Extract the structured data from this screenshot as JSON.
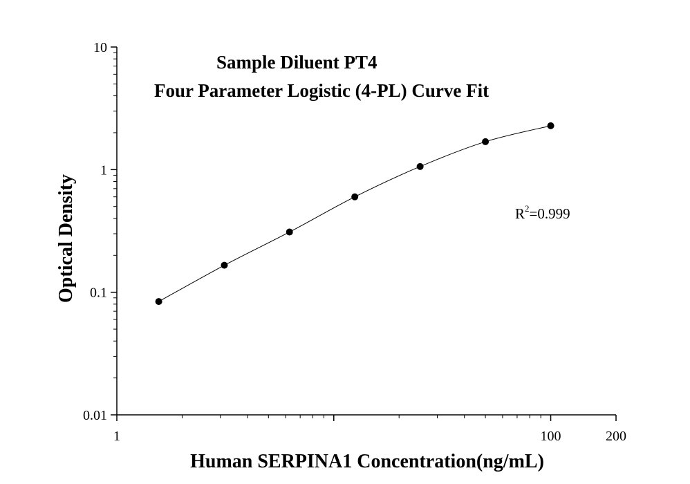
{
  "chart_data": {
    "type": "scatter",
    "title": "Sample Diluent PT4",
    "subtitle": "Four Parameter Logistic (4-PL) Curve Fit",
    "xlabel": "Human SERPINA1 Concentration(ng/mL)",
    "ylabel": "Optical Density",
    "x_scale": "log",
    "y_scale": "log",
    "xlim": [
      1,
      200
    ],
    "ylim": [
      0.01,
      10
    ],
    "x_tick_labels": [
      "1",
      "100",
      "200"
    ],
    "y_tick_labels": [
      "0.01",
      "0.1",
      "1",
      "10"
    ],
    "grid": false,
    "legend": "none",
    "series": [
      {
        "x": [
          1.56,
          3.13,
          6.25,
          12.5,
          25,
          50,
          100
        ],
        "y": [
          0.084,
          0.166,
          0.31,
          0.6,
          1.06,
          1.69,
          2.28
        ],
        "marker_color": "#000000",
        "line_color": "#000000"
      }
    ],
    "annotation": {
      "base": "R",
      "superscript": "2",
      "value": "=0.999"
    }
  }
}
